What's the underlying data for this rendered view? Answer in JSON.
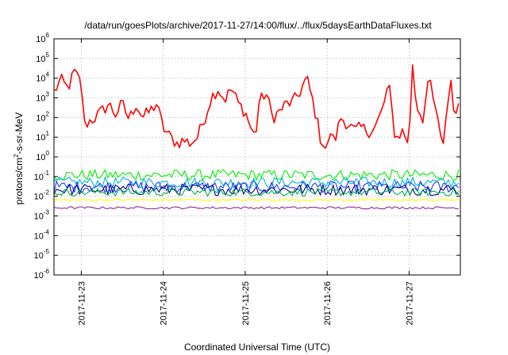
{
  "chart_data": {
    "type": "line",
    "title": "/data/run/goesPlots/archive/2017-11-27/14:00/flux/../flux/5daysEarthDataFluxes.txt",
    "xlabel": "Coordinated Universal Time (UTC)",
    "ylabel_main": "protons/cm",
    "ylabel_sup": "2",
    "ylabel_tail": "-s-sr-MeV",
    "xlim": [
      "2017-11-22 16:00",
      "2017-11-27 15:00"
    ],
    "ylim": [
      1e-06,
      1000000.0
    ],
    "yscale": "log",
    "grid": true,
    "legend": "none",
    "x_ticks": [
      {
        "date": "2017-11-23 00:00",
        "label": "2017-11-23"
      },
      {
        "date": "2017-11-24 00:00",
        "label": "2017-11-24"
      },
      {
        "date": "2017-11-25 00:00",
        "label": "2017-11-25"
      },
      {
        "date": "2017-11-26 00:00",
        "label": "2017-11-26"
      },
      {
        "date": "2017-11-27 00:00",
        "label": "2017-11-27"
      }
    ],
    "y_ticks": [
      {
        "value": 1e-06,
        "base": "10",
        "exp": "-6"
      },
      {
        "value": 1e-05,
        "base": "10",
        "exp": "-5"
      },
      {
        "value": 0.0001,
        "base": "10",
        "exp": "-4"
      },
      {
        "value": 0.001,
        "base": "10",
        "exp": "-3"
      },
      {
        "value": 0.01,
        "base": "10",
        "exp": "-2"
      },
      {
        "value": 0.1,
        "base": "10",
        "exp": "-1"
      },
      {
        "value": 1,
        "base": "10",
        "exp": "0"
      },
      {
        "value": 10,
        "base": "10",
        "exp": "1"
      },
      {
        "value": 100,
        "base": "10",
        "exp": "2"
      },
      {
        "value": 1000,
        "base": "10",
        "exp": "3"
      },
      {
        "value": 10000,
        "base": "10",
        "exp": "4"
      },
      {
        "value": 100000,
        "base": "10",
        "exp": "5"
      },
      {
        "value": 1000000,
        "base": "10",
        "exp": "6"
      }
    ],
    "series": [
      {
        "color": "#ff0000",
        "noise": 0.35,
        "points": [
          [
            "2017-11-22 16:00",
            2000
          ],
          [
            "2017-11-22 18:00",
            8000
          ],
          [
            "2017-11-22 20:00",
            3000
          ],
          [
            "2017-11-22 22:00",
            20000
          ],
          [
            "2017-11-23 00:00",
            5000
          ],
          [
            "2017-11-23 01:00",
            40
          ],
          [
            "2017-11-23 02:00",
            60
          ],
          [
            "2017-11-23 04:00",
            100
          ],
          [
            "2017-11-23 06:00",
            200
          ],
          [
            "2017-11-23 08:00",
            500
          ],
          [
            "2017-11-23 10:00",
            150
          ],
          [
            "2017-11-23 12:00",
            500
          ],
          [
            "2017-11-23 14:00",
            80
          ],
          [
            "2017-11-23 16:00",
            500
          ],
          [
            "2017-11-23 18:00",
            100
          ],
          [
            "2017-11-23 20:00",
            200
          ],
          [
            "2017-11-23 22:00",
            500
          ],
          [
            "2017-11-24 00:00",
            30
          ],
          [
            "2017-11-24 02:00",
            10
          ],
          [
            "2017-11-24 04:00",
            5
          ],
          [
            "2017-11-24 06:00",
            7
          ],
          [
            "2017-11-24 08:00",
            5
          ],
          [
            "2017-11-24 10:00",
            10
          ],
          [
            "2017-11-24 12:00",
            80
          ],
          [
            "2017-11-24 14:00",
            1000
          ],
          [
            "2017-11-24 16:00",
            3000
          ],
          [
            "2017-11-24 18:00",
            800
          ],
          [
            "2017-11-24 20:00",
            3000
          ],
          [
            "2017-11-24 22:00",
            500
          ],
          [
            "2017-11-25 00:00",
            200
          ],
          [
            "2017-11-25 02:00",
            20
          ],
          [
            "2017-11-25 03:00",
            10
          ],
          [
            "2017-11-25 04:00",
            500
          ],
          [
            "2017-11-25 06:00",
            2000
          ],
          [
            "2017-11-25 08:00",
            100
          ],
          [
            "2017-11-25 10:00",
            200
          ],
          [
            "2017-11-25 12:00",
            500
          ],
          [
            "2017-11-25 14:00",
            600
          ],
          [
            "2017-11-25 16:00",
            2000
          ],
          [
            "2017-11-25 18:00",
            10000
          ],
          [
            "2017-11-25 20:00",
            500
          ],
          [
            "2017-11-25 22:00",
            10
          ],
          [
            "2017-11-26 00:00",
            2
          ],
          [
            "2017-11-26 01:00",
            20
          ],
          [
            "2017-11-26 02:00",
            5
          ],
          [
            "2017-11-26 04:00",
            100
          ],
          [
            "2017-11-26 06:00",
            50
          ],
          [
            "2017-11-26 08:00",
            20
          ],
          [
            "2017-11-26 10:00",
            30
          ],
          [
            "2017-11-26 12:00",
            20
          ],
          [
            "2017-11-26 14:00",
            30
          ],
          [
            "2017-11-26 16:00",
            200
          ],
          [
            "2017-11-26 18:00",
            5000
          ],
          [
            "2017-11-26 20:00",
            8
          ],
          [
            "2017-11-26 22:00",
            20
          ],
          [
            "2017-11-27 00:00",
            5
          ],
          [
            "2017-11-27 01:00",
            60000
          ],
          [
            "2017-11-27 02:00",
            500
          ],
          [
            "2017-11-27 04:00",
            100
          ],
          [
            "2017-11-27 06:00",
            10000
          ],
          [
            "2017-11-27 08:00",
            100
          ],
          [
            "2017-11-27 10:00",
            5
          ],
          [
            "2017-11-27 12:00",
            10000
          ],
          [
            "2017-11-27 13:00",
            300
          ],
          [
            "2017-11-27 15:00",
            500
          ]
        ]
      },
      {
        "color": "#00ee00",
        "noise": 0.28,
        "points": [
          [
            "2017-11-22 16:00",
            0.12
          ],
          [
            "2017-11-27 15:00",
            0.12
          ]
        ]
      },
      {
        "color": "#00b4d8",
        "noise": 0.28,
        "points": [
          [
            "2017-11-22 16:00",
            0.05
          ],
          [
            "2017-11-27 15:00",
            0.05
          ]
        ]
      },
      {
        "color": "#1a3cff",
        "noise": 0.3,
        "points": [
          [
            "2017-11-22 16:00",
            0.03
          ],
          [
            "2017-11-27 15:00",
            0.03
          ]
        ]
      },
      {
        "color": "#000080",
        "noise": 0.3,
        "points": [
          [
            "2017-11-22 16:00",
            0.022
          ],
          [
            "2017-11-27 15:00",
            0.022
          ]
        ]
      },
      {
        "color": "#00b050",
        "noise": 0.2,
        "points": [
          [
            "2017-11-22 16:00",
            0.016
          ],
          [
            "2017-11-27 15:00",
            0.016
          ]
        ]
      },
      {
        "color": "#ffff00",
        "noise": 0.06,
        "points": [
          [
            "2017-11-22 16:00",
            0.0065
          ],
          [
            "2017-11-27 15:00",
            0.0065
          ]
        ]
      },
      {
        "color": "#8b2d8b",
        "noise": 0.06,
        "points": [
          [
            "2017-11-22 16:00",
            0.0026
          ],
          [
            "2017-11-27 15:00",
            0.0026
          ]
        ]
      }
    ]
  }
}
